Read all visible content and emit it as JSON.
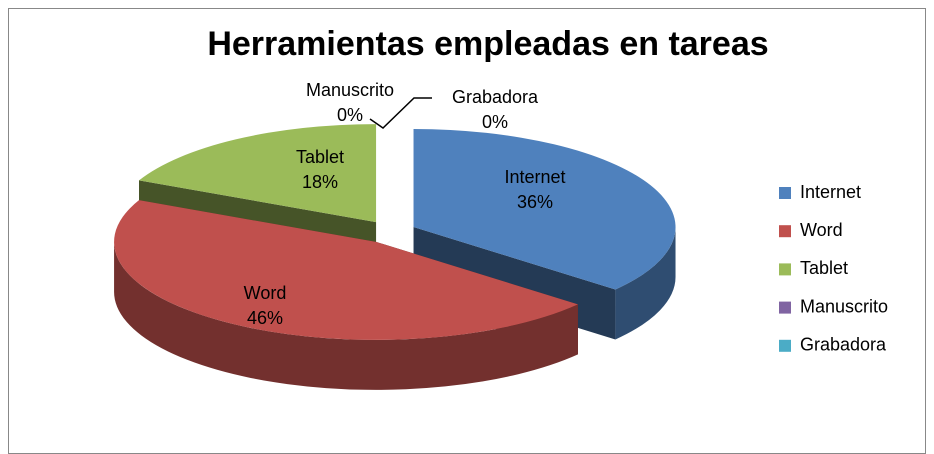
{
  "chart_data": {
    "type": "pie",
    "title": "Herramientas empleadas en tareas",
    "categories": [
      "Internet",
      "Word",
      "Tablet",
      "Manuscrito",
      "Grabadora"
    ],
    "values": [
      36,
      46,
      18,
      0,
      0
    ],
    "value_labels": [
      "36%",
      "46%",
      "18%",
      "0%",
      "0%"
    ],
    "colors": [
      "#4f81bd",
      "#c0504d",
      "#9bbb59",
      "#8064a2",
      "#4bacc6"
    ],
    "legend": "right"
  }
}
